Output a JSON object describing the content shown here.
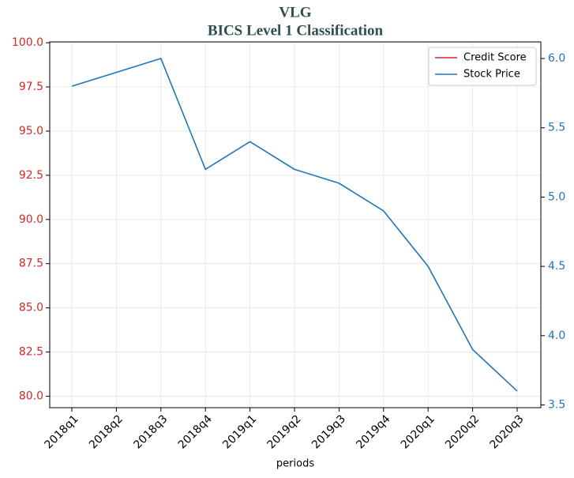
{
  "chart_data": {
    "type": "line",
    "title": "VLG",
    "subtitle": "BICS Level 1 Classification",
    "xlabel": "periods",
    "categories": [
      "2018q1",
      "2018q2",
      "2018q3",
      "2018q4",
      "2019q1",
      "2019q2",
      "2019q3",
      "2019q4",
      "2020q1",
      "2020q2",
      "2020q3"
    ],
    "series": [
      {
        "name": "Credit Score",
        "color": "#d62728",
        "axis": "y",
        "values": [
          null,
          null,
          null,
          null,
          null,
          null,
          null,
          null,
          null,
          null,
          null
        ]
      },
      {
        "name": "Stock Price",
        "color": "#1f77b4",
        "axis": "y2",
        "values": [
          5.8,
          5.9,
          6.0,
          5.2,
          5.4,
          5.2,
          5.1,
          4.9,
          4.5,
          3.9,
          3.6
        ]
      }
    ],
    "ylim": [
      79.35,
      100.05
    ],
    "yticks": [
      {
        "value": 80,
        "label": "80.0"
      },
      82.5,
      {
        "value": 85,
        "label": "85.0"
      },
      87.5,
      {
        "value": 90,
        "label": "90.0"
      },
      92.5,
      {
        "value": 95,
        "label": "95.0"
      },
      97.5,
      {
        "value": 100,
        "label": "100.0"
      }
    ],
    "y2lim": [
      3.48,
      6.12
    ],
    "y2ticks": [
      3.5,
      {
        "value": 4,
        "label": "4.0"
      },
      4.5,
      {
        "value": 5,
        "label": "5.0"
      },
      5.5,
      {
        "value": 6,
        "label": "6.0"
      }
    ],
    "grid": true,
    "legend": "upper right"
  }
}
